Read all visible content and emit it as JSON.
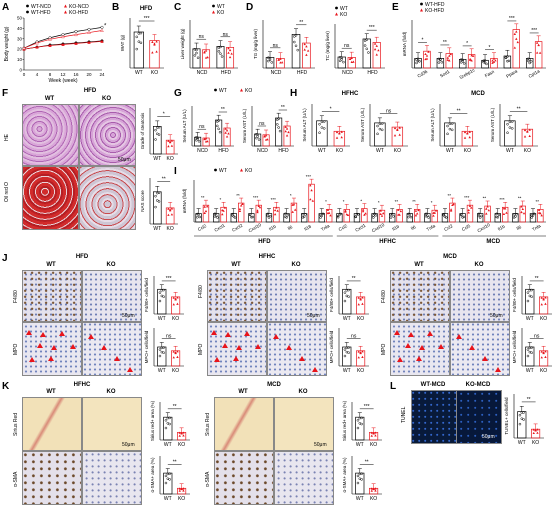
{
  "panels": {
    "A": "A",
    "B": "B",
    "C": "C",
    "D": "D",
    "E": "E",
    "F": "F",
    "G": "G",
    "H": "H",
    "I": "I",
    "J": "J",
    "K": "K",
    "L": "L"
  },
  "panelA": {
    "legend": [
      "WT-NCD",
      "KO-NCD",
      "WT-HFD",
      "KO-HFD"
    ],
    "ylabel": "Body weight (g)",
    "xlabel": "Week (week)",
    "xticks": [
      "0",
      "4",
      "8",
      "12",
      "16",
      "20",
      "24"
    ],
    "yticks": [
      "0",
      "10",
      "20",
      "30",
      "40",
      "50"
    ],
    "sig": "*"
  },
  "panelB": {
    "title": "HFD",
    "ylabel": "WAT (g)",
    "x": [
      "WT",
      "KO"
    ],
    "sig": "***",
    "yticks": [
      "0",
      "1",
      "2",
      "3"
    ]
  },
  "panelC": {
    "legend": [
      "WT",
      "KO"
    ],
    "ylabel": "Liver weight (g)",
    "x": [
      "NCD",
      "HFD"
    ],
    "sig": [
      "ns",
      "ns"
    ],
    "yticks": [
      "0",
      "1",
      "2",
      "3"
    ]
  },
  "panelD": {
    "left": {
      "ylabel": "TG (mg/g liver)",
      "x": [
        "NCD",
        "HFD"
      ],
      "sig": [
        "ns",
        "**"
      ],
      "yticks": [
        "0",
        "20",
        "40",
        "60"
      ]
    },
    "right": {
      "ylabel": "TC (mg/g liver)",
      "x": [
        "NCD",
        "HFD"
      ],
      "sig": [
        "ns",
        "***"
      ],
      "yticks": [
        "0",
        "5",
        "10",
        "15"
      ]
    },
    "legend": [
      "WT",
      "KO"
    ]
  },
  "panelE": {
    "legend": [
      "WT-HFD",
      "KO-HFD"
    ],
    "ylabel": "mRNA (fold)",
    "genes": [
      "Cd36",
      "Sod1",
      "Srebp1c",
      "Fasn",
      "Ppara",
      "Cpt1a"
    ],
    "sig": [
      "*",
      "**",
      "*",
      "*",
      "***",
      "***"
    ],
    "yticks": [
      "0",
      "2",
      "4",
      "6"
    ]
  },
  "panelF": {
    "title": "HFD",
    "cols": [
      "WT",
      "KO"
    ],
    "rows": [
      "HE",
      "Oil red O"
    ],
    "scale": "50μm",
    "chart1": {
      "ylabel": "Grade of steatosis",
      "x": [
        "WT",
        "KO"
      ],
      "sig": "*"
    },
    "chart2": {
      "ylabel": "NAS score",
      "x": [
        "WT",
        "KO"
      ],
      "sig": "**"
    }
  },
  "panelG": {
    "legend": [
      "WT",
      "KO"
    ],
    "left": {
      "ylabel": "Serum ALT (U/L)",
      "x": [
        "NCD",
        "HFD"
      ],
      "sig": [
        "ns",
        "**"
      ]
    },
    "right": {
      "ylabel": "Serum AST (U/L)",
      "x": [
        "NCD",
        "HFD"
      ],
      "sig": [
        "ns",
        "**"
      ]
    }
  },
  "panelH": {
    "groups": [
      "HFHC",
      "MCD"
    ],
    "charts": [
      {
        "ylabel": "Serum ALT (U/L)",
        "x": [
          "WT",
          "KO"
        ],
        "sig": "*"
      },
      {
        "ylabel": "Serum AST (U/L)",
        "x": [
          "WT",
          "KO"
        ],
        "sig": "ns"
      },
      {
        "ylabel": "Serum ALT (U/L)",
        "x": [
          "WT",
          "KO"
        ],
        "sig": "**"
      },
      {
        "ylabel": "Serum AST (U/L)",
        "x": [
          "WT",
          "KO"
        ],
        "sig": "**"
      }
    ]
  },
  "panelI": {
    "legend": [
      "WT",
      "KO"
    ],
    "ylabel": "mRNA (fold)",
    "groups": [
      "HFD",
      "HFHC",
      "MCD"
    ],
    "genesHFD": [
      "Ccl2",
      "Cxcl1",
      "Cxcl2",
      "Cxcl10",
      "Il1b",
      "Il6",
      "Il18",
      "Tnfa"
    ],
    "genesHFHC": [
      "Ccl2",
      "Cxcl1",
      "Cxcl10",
      "Il1b",
      "Il6",
      "Tnfa"
    ],
    "genesMCD": [
      "Ccl2",
      "Ccl5",
      "Cxcl10",
      "Il1b",
      "Il6",
      "Tnfa"
    ],
    "sig": [
      "**",
      "*",
      "**",
      "***",
      "***",
      "*",
      "***",
      "*",
      "*",
      "*",
      "*",
      "**",
      "**",
      "*",
      "**",
      "***",
      "**",
      "***",
      "**",
      "**"
    ]
  },
  "panelJ": {
    "blocks": [
      {
        "title": "HFD",
        "cols": [
          "WT",
          "KO"
        ],
        "rows": [
          "F4/80",
          "MPO"
        ],
        "sig1": "***",
        "sig2": "ns",
        "y1": "F4/80+ cells/field",
        "y2": "MPO+ cells/field"
      },
      {
        "title": "HFHC",
        "cols": [
          "WT",
          "KO"
        ],
        "rows": [
          "F4/80",
          "MPO"
        ],
        "sig1": "**",
        "sig2": "ns",
        "y1": "F4/80+ cells/field",
        "y2": "MPO+ cells/field"
      },
      {
        "title": "MCD",
        "cols": [
          "WT",
          "KO"
        ],
        "rows": [
          "F4/80",
          "MPO"
        ],
        "sig1": "**",
        "sig2": "ns",
        "y1": "F4/80+ cells/field",
        "y2": "MPO+ cells/field"
      }
    ],
    "scale": "50μm"
  },
  "panelK": {
    "blocks": [
      {
        "title": "HFHC",
        "cols": [
          "WT",
          "KO"
        ],
        "rows": [
          "Sirius Red",
          "α-SMA"
        ],
        "sig1": "**",
        "sig2": "**",
        "y1": "Sirius red+ area (%)",
        "y2": "α-SMA+ area (%)"
      },
      {
        "title": "MCD",
        "cols": [
          "WT",
          "KO"
        ],
        "rows": [
          "Sirius Red",
          "α-SMA"
        ],
        "sig1": "***",
        "sig2": "**",
        "y1": "Sirius red+ area (%)",
        "y2": "α-SMA+ area (%)"
      }
    ],
    "scale": "50μm"
  },
  "panelL": {
    "cols": [
      "WT-MCD",
      "KO-MCD"
    ],
    "row": "TUNEL",
    "scale": "50μm",
    "ylabel": "TUNEL+ cells/field",
    "x": [
      "WT",
      "KO"
    ],
    "sig": "**"
  },
  "colors": {
    "wt": "#000000",
    "ko": "#e8141b",
    "he": "#c57fc6",
    "oil": "#c83232",
    "ihc": "#e9e4ee",
    "sirius": "#f2e1b8",
    "tunel": "#081a3a"
  }
}
